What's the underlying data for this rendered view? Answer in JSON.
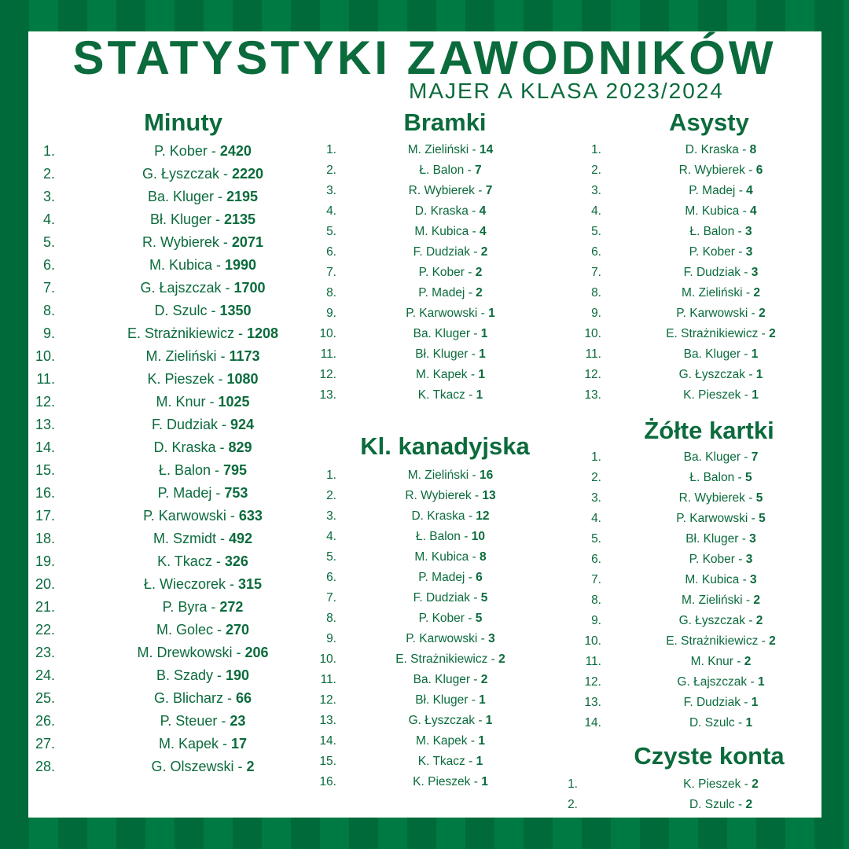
{
  "header": {
    "title": "STATYSTYKI ZAWODNIKÓW",
    "subtitle": "MAJER A KLASA 2023/2024"
  },
  "colors": {
    "green": "#0b6b3c",
    "stripe_dark": "#006a3a",
    "stripe_light": "#007a43",
    "panel": "#ffffff"
  },
  "sections": [
    {
      "id": "minuty",
      "heading": "Minuty",
      "rows": [
        [
          "P. Kober",
          "2420"
        ],
        [
          "G. Łyszczak",
          "2220"
        ],
        [
          "Ba. Kluger",
          "2195"
        ],
        [
          "Bł. Kluger",
          "2135"
        ],
        [
          "R. Wybierek",
          "2071"
        ],
        [
          "M. Kubica",
          "1990"
        ],
        [
          "G. Łajszczak",
          "1700"
        ],
        [
          "D. Szulc",
          "1350"
        ],
        [
          "E. Strażnikiewicz",
          "1208"
        ],
        [
          "M. Zieliński",
          "1173"
        ],
        [
          "K. Pieszek",
          "1080"
        ],
        [
          "M. Knur",
          "1025"
        ],
        [
          "F. Dudziak",
          "924"
        ],
        [
          "D. Kraska",
          "829"
        ],
        [
          "Ł. Balon",
          "795"
        ],
        [
          "P. Madej",
          "753"
        ],
        [
          "P. Karwowski",
          "633"
        ],
        [
          "M. Szmidt",
          "492"
        ],
        [
          "K. Tkacz",
          "326"
        ],
        [
          "Ł. Wieczorek",
          "315"
        ],
        [
          "P. Byra",
          "272"
        ],
        [
          "M. Golec",
          "270"
        ],
        [
          "M. Drewkowski",
          "206"
        ],
        [
          "B. Szady",
          "190"
        ],
        [
          "G. Blicharz",
          "66"
        ],
        [
          "P. Steuer",
          "23"
        ],
        [
          "M. Kapek",
          "17"
        ],
        [
          "G. Olszewski",
          "2"
        ]
      ]
    },
    {
      "id": "bramki",
      "heading": "Bramki",
      "rows": [
        [
          "M. Zieliński",
          "14"
        ],
        [
          "Ł. Balon",
          "7"
        ],
        [
          "R. Wybierek",
          "7"
        ],
        [
          "D. Kraska",
          "4"
        ],
        [
          "M. Kubica",
          "4"
        ],
        [
          "F. Dudziak",
          "2"
        ],
        [
          "P. Kober",
          "2"
        ],
        [
          "P. Madej",
          "2"
        ],
        [
          "P. Karwowski",
          "1"
        ],
        [
          "Ba. Kluger",
          "1"
        ],
        [
          "Bł. Kluger",
          "1"
        ],
        [
          "M. Kapek",
          "1"
        ],
        [
          "K. Tkacz",
          "1"
        ]
      ]
    },
    {
      "id": "kanadyjska",
      "heading": "Kl. kanadyjska",
      "rows": [
        [
          "M. Zieliński",
          "16"
        ],
        [
          "R. Wybierek",
          "13"
        ],
        [
          "D. Kraska",
          "12"
        ],
        [
          "Ł. Balon",
          "10"
        ],
        [
          "M. Kubica",
          "8"
        ],
        [
          "P. Madej",
          "6"
        ],
        [
          "F. Dudziak",
          "5"
        ],
        [
          "P. Kober",
          "5"
        ],
        [
          "P. Karwowski",
          "3"
        ],
        [
          "E. Strażnikiewicz",
          "2"
        ],
        [
          "Ba. Kluger",
          "2"
        ],
        [
          "Bł. Kluger",
          "1"
        ],
        [
          "G. Łyszczak",
          "1"
        ],
        [
          "M. Kapek",
          "1"
        ],
        [
          "K. Tkacz",
          "1"
        ],
        [
          "K. Pieszek",
          "1"
        ]
      ]
    },
    {
      "id": "asysty",
      "heading": "Asysty",
      "rows": [
        [
          "D. Kraska",
          "8"
        ],
        [
          "R. Wybierek",
          "6"
        ],
        [
          "P. Madej",
          "4"
        ],
        [
          "M. Kubica",
          "4"
        ],
        [
          "Ł. Balon",
          "3"
        ],
        [
          "P. Kober",
          "3"
        ],
        [
          "F. Dudziak",
          "3"
        ],
        [
          "M. Zieliński",
          "2"
        ],
        [
          "P. Karwowski",
          "2"
        ],
        [
          "E. Strażnikiewicz",
          "2"
        ],
        [
          "Ba. Kluger",
          "1"
        ],
        [
          "G. Łyszczak",
          "1"
        ],
        [
          "K. Pieszek",
          "1"
        ]
      ]
    },
    {
      "id": "zolte",
      "heading": "Żółte kartki",
      "rows": [
        [
          "Ba. Kluger",
          "7"
        ],
        [
          "Ł. Balon",
          "5"
        ],
        [
          "R. Wybierek",
          "5"
        ],
        [
          "P. Karwowski",
          "5"
        ],
        [
          "Bł. Kluger",
          "3"
        ],
        [
          "P. Kober",
          "3"
        ],
        [
          "M. Kubica",
          "3"
        ],
        [
          "M. Zieliński",
          "2"
        ],
        [
          "G. Łyszczak",
          "2"
        ],
        [
          "E. Strażnikiewicz",
          "2"
        ],
        [
          "M. Knur",
          "2"
        ],
        [
          "G. Łajszczak",
          "1"
        ],
        [
          "F. Dudziak",
          "1"
        ],
        [
          "D. Szulc",
          "1"
        ]
      ]
    },
    {
      "id": "czyste",
      "heading": "Czyste konta",
      "rows": [
        [
          "K. Pieszek",
          "2"
        ],
        [
          "D. Szulc",
          "2"
        ]
      ]
    }
  ]
}
